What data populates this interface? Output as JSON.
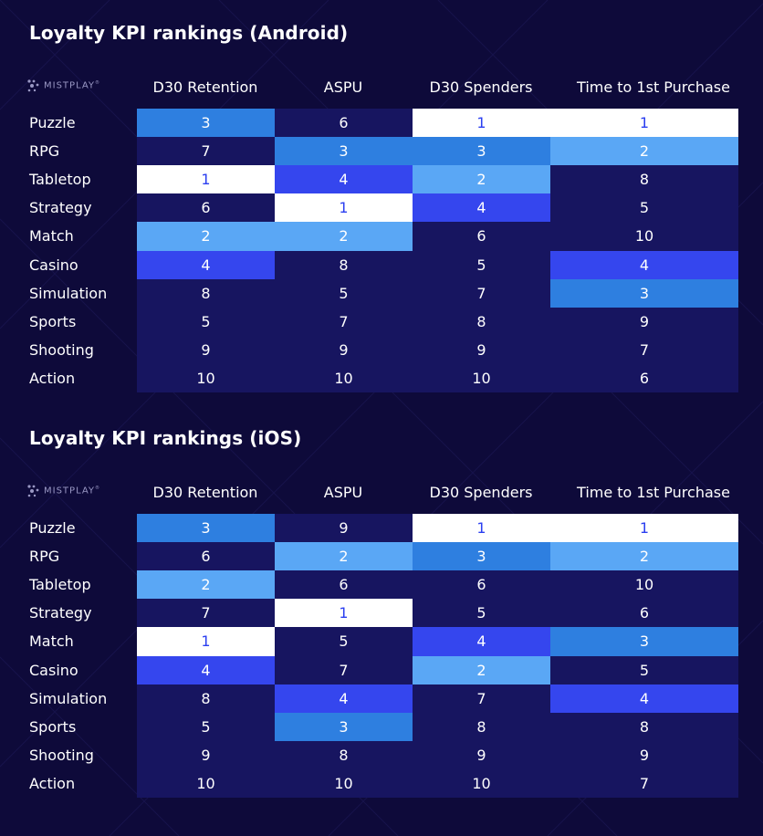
{
  "brand": {
    "logo_text": "MISTPLAY",
    "logo_mark": "®"
  },
  "colors": {
    "background": "#0e0a3a",
    "rank_1": "#ffffff",
    "rank_2": "#5aa7f5",
    "rank_3": "#2e7fe0",
    "rank_4": "#3546ee",
    "rank_other": "#171560",
    "rank_1_text": "#2b3ff0"
  },
  "chart_data": [
    {
      "type": "table",
      "title": "Loyalty KPI rankings (Android)",
      "columns": [
        "D30 Retention",
        "ASPU",
        "D30 Spenders",
        "Time to 1st Purchase"
      ],
      "rows": [
        {
          "label": "Puzzle",
          "values": [
            3,
            6,
            1,
            1
          ]
        },
        {
          "label": "RPG",
          "values": [
            7,
            3,
            3,
            2
          ]
        },
        {
          "label": "Tabletop",
          "values": [
            1,
            4,
            2,
            8
          ]
        },
        {
          "label": "Strategy",
          "values": [
            6,
            1,
            4,
            5
          ]
        },
        {
          "label": "Match",
          "values": [
            2,
            2,
            6,
            10
          ]
        },
        {
          "label": "Casino",
          "values": [
            4,
            8,
            5,
            4
          ]
        },
        {
          "label": "Simulation",
          "values": [
            8,
            5,
            7,
            3
          ]
        },
        {
          "label": "Sports",
          "values": [
            5,
            7,
            8,
            9
          ]
        },
        {
          "label": "Shooting",
          "values": [
            9,
            9,
            9,
            7
          ]
        },
        {
          "label": "Action",
          "values": [
            10,
            10,
            10,
            6
          ]
        }
      ]
    },
    {
      "type": "table",
      "title": "Loyalty KPI rankings (iOS)",
      "columns": [
        "D30 Retention",
        "ASPU",
        "D30 Spenders",
        "Time to 1st Purchase"
      ],
      "rows": [
        {
          "label": "Puzzle",
          "values": [
            3,
            9,
            1,
            1
          ]
        },
        {
          "label": "RPG",
          "values": [
            6,
            2,
            3,
            2
          ]
        },
        {
          "label": "Tabletop",
          "values": [
            2,
            6,
            6,
            10
          ]
        },
        {
          "label": "Strategy",
          "values": [
            7,
            1,
            5,
            6
          ]
        },
        {
          "label": "Match",
          "values": [
            1,
            5,
            4,
            3
          ]
        },
        {
          "label": "Casino",
          "values": [
            4,
            7,
            2,
            5
          ]
        },
        {
          "label": "Simulation",
          "values": [
            8,
            4,
            7,
            4
          ]
        },
        {
          "label": "Sports",
          "values": [
            5,
            3,
            8,
            8
          ]
        },
        {
          "label": "Shooting",
          "values": [
            9,
            8,
            9,
            9
          ]
        },
        {
          "label": "Action",
          "values": [
            10,
            10,
            10,
            7
          ]
        }
      ]
    }
  ]
}
